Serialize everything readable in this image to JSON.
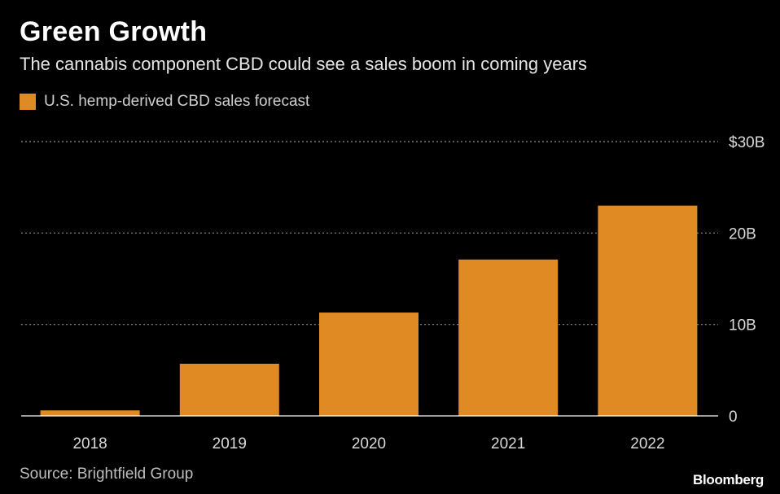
{
  "header": {
    "title": "Green Growth",
    "subtitle": "The cannabis component CBD could see a sales boom in coming years"
  },
  "legend": {
    "label": "U.S. hemp-derived CBD sales forecast"
  },
  "footer": {
    "source": "Source: Brightfield Group",
    "brand": "Bloomberg"
  },
  "colors": {
    "bar": "#e08a24",
    "grid": "#8a8a8a",
    "axis": "#ffffff",
    "tick_text": "#d9d9d9",
    "background": "#000000"
  },
  "chart_data": {
    "type": "bar",
    "title": "Green Growth",
    "subtitle": "The cannabis component CBD could see a sales boom in coming years",
    "categories": [
      "2018",
      "2019",
      "2020",
      "2021",
      "2022"
    ],
    "series": [
      {
        "name": "U.S. hemp-derived CBD sales forecast",
        "values": [
          0.6,
          5.7,
          11.3,
          17.1,
          23.0
        ]
      }
    ],
    "ylim": [
      0,
      30
    ],
    "yticks": [
      0,
      10,
      20,
      30
    ],
    "ytick_labels": [
      "0",
      "10B",
      "20B",
      "$30B"
    ],
    "y_axis_side": "right",
    "grid": true,
    "legend_position": "top-left",
    "xlabel": "",
    "ylabel": ""
  }
}
